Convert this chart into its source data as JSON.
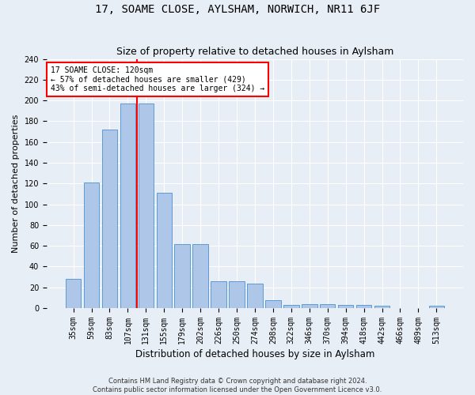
{
  "title": "17, SOAME CLOSE, AYLSHAM, NORWICH, NR11 6JF",
  "subtitle": "Size of property relative to detached houses in Aylsham",
  "xlabel": "Distribution of detached houses by size in Aylsham",
  "ylabel": "Number of detached properties",
  "footer_line1": "Contains HM Land Registry data © Crown copyright and database right 2024.",
  "footer_line2": "Contains public sector information licensed under the Open Government Licence v3.0.",
  "bin_labels": [
    "35sqm",
    "59sqm",
    "83sqm",
    "107sqm",
    "131sqm",
    "155sqm",
    "179sqm",
    "202sqm",
    "226sqm",
    "250sqm",
    "274sqm",
    "298sqm",
    "322sqm",
    "346sqm",
    "370sqm",
    "394sqm",
    "418sqm",
    "442sqm",
    "466sqm",
    "489sqm",
    "513sqm"
  ],
  "bar_values": [
    28,
    121,
    172,
    197,
    197,
    111,
    62,
    62,
    26,
    26,
    24,
    8,
    3,
    4,
    4,
    3,
    3,
    2,
    0,
    0,
    2
  ],
  "bar_color": "#aec6e8",
  "bar_edgecolor": "#5b9bd5",
  "vline_x_index": 3.5,
  "vline_color": "red",
  "annotation_text": "17 SOAME CLOSE: 120sqm\n← 57% of detached houses are smaller (429)\n43% of semi-detached houses are larger (324) →",
  "annotation_box_color": "white",
  "annotation_box_edgecolor": "red",
  "ylim": [
    0,
    240
  ],
  "yticks": [
    0,
    20,
    40,
    60,
    80,
    100,
    120,
    140,
    160,
    180,
    200,
    220,
    240
  ],
  "background_color": "#e8eef5",
  "plot_bg_color": "#e8eef5",
  "title_fontsize": 10,
  "subtitle_fontsize": 9,
  "ylabel_fontsize": 8,
  "xlabel_fontsize": 8.5,
  "tick_fontsize": 7,
  "annotation_fontsize": 7,
  "footer_fontsize": 6,
  "grid_color": "white"
}
